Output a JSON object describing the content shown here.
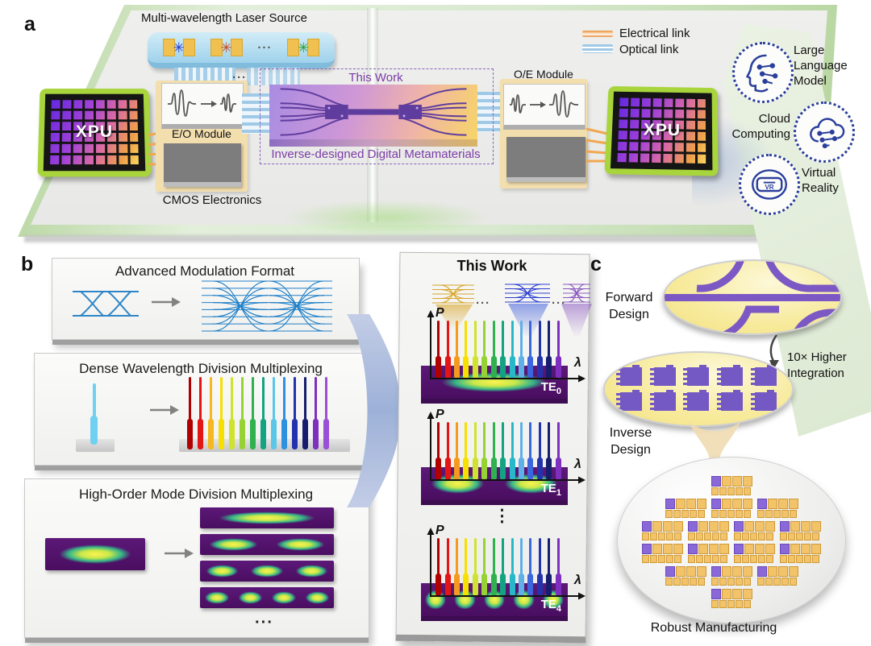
{
  "figure": {
    "panel_a_label": "a",
    "panel_b_label": "b",
    "panel_c_label": "c"
  },
  "panel_a": {
    "laser_label": "Multi-wavelength Laser Source",
    "laser_dots": "···",
    "ribbon_dots": "···",
    "xpu_label": "XPU",
    "eo_label": "E/O Module",
    "cmos_label": "CMOS Electronics",
    "oe_label": "O/E Module",
    "this_work_label": "This Work",
    "chip_label": "Inverse-designed Digital Metamaterials",
    "legend": {
      "electrical": "Electrical link",
      "optical": "Optical link"
    },
    "apps": [
      {
        "name": "llm",
        "label": "Large Language Model"
      },
      {
        "name": "cloud",
        "label": "Cloud Computing"
      },
      {
        "name": "vr",
        "label": "Virtual Reality",
        "icon_text": "VR"
      }
    ]
  },
  "panel_b": {
    "card1_title": "Advanced Modulation Format",
    "card2_title": "Dense Wavelength Division Multiplexing",
    "card3_title": "High-Order Mode Division Multiplexing",
    "dots": "···",
    "card3_input_lobes": 1,
    "mode_lobe_counts": [
      1,
      2,
      3,
      4
    ]
  },
  "this_work": {
    "title": "This Work",
    "p_label": "P",
    "lambda_label": "λ",
    "dots": "···",
    "vdots": "⋮",
    "modes": [
      {
        "base": "TE",
        "sub": "0",
        "lobes": 1
      },
      {
        "base": "TE",
        "sub": "1",
        "lobes": 2
      },
      {
        "base": "TE",
        "sub": "4",
        "lobes": 5
      }
    ]
  },
  "panel_c": {
    "forward_label": "Forward Design",
    "integration_label": "10× Higher Integration",
    "inverse_label": "Inverse Design",
    "robust_label": "Robust Manufacturing",
    "wafer_rows": [
      1,
      3,
      4,
      4,
      3,
      1
    ]
  },
  "colors": {
    "accent_purple": "#7a3ca8",
    "waveguide_purple": "#5f3d9e",
    "icon_blue": "#2b3f9c",
    "electrical_orange": "#f0a850",
    "optical_blue": "#a6cee8",
    "die_gold": "#f2c368",
    "die_purple": "#8b68d8",
    "inverse_block_purple": "#7458c4",
    "eye_blue": "#2080c8",
    "laser_stars": [
      "#2838c8",
      "#c8481a",
      "#28a028"
    ],
    "thumb_colors": [
      "#d8a428",
      "#2b3fd0",
      "#8a58c0"
    ],
    "comb_colors": [
      "#b00000",
      "#e31515",
      "#f59a1e",
      "#f7df00",
      "#cfe32e",
      "#96d234",
      "#2eb14e",
      "#14a382",
      "#27b9c9",
      "#5fb0e8",
      "#3b66dd",
      "#2433ad",
      "#161d6e",
      "#7e2fc0"
    ],
    "dwdm_colors": [
      "#b00000",
      "#e31515",
      "#f5b81e",
      "#f7df00",
      "#cfe32e",
      "#96d234",
      "#2eb14e",
      "#14a382",
      "#5bc6e8",
      "#2f8fe0",
      "#2433ad",
      "#161d6e",
      "#7e2fc0",
      "#9a4fd6"
    ]
  }
}
